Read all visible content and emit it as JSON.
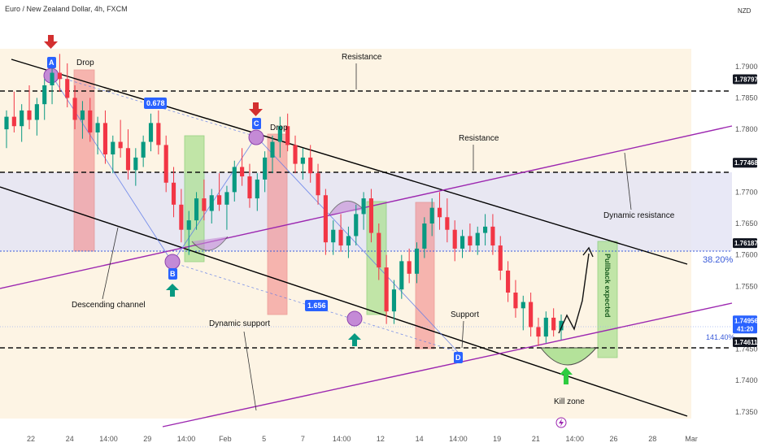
{
  "header": {
    "title": "Euro / New Zealand Dollar, 4h, FXCM",
    "currency": "NZD"
  },
  "chart_data": {
    "type": "candlestick",
    "title": "Euro / New Zealand Dollar, 4h, FXCM",
    "ylim": [
      1.732,
      1.798
    ],
    "y_ticks": [
      {
        "value": 1.79,
        "label": "1.79000"
      },
      {
        "value": 1.785,
        "label": "1.78500"
      },
      {
        "value": 1.78,
        "label": "1.78000"
      },
      {
        "value": 1.77,
        "label": "1.77000"
      },
      {
        "value": 1.765,
        "label": "1.76500"
      },
      {
        "value": 1.76,
        "label": "1.76000"
      },
      {
        "value": 1.755,
        "label": "1.75500"
      },
      {
        "value": 1.745,
        "label": "1.74500"
      },
      {
        "value": 1.74,
        "label": "1.74000"
      },
      {
        "value": 1.735,
        "label": "1.73500"
      }
    ],
    "highlighted_prices": [
      {
        "value": 1.78797,
        "label": "1.78797"
      },
      {
        "value": 1.77468,
        "label": "1.77468"
      },
      {
        "value": 1.76187,
        "label": "1.76187"
      },
      {
        "value": 1.74611,
        "label": "1.74611"
      }
    ],
    "current_price": {
      "value": 1.74956,
      "label": "1.74956",
      "countdown": "41:20",
      "color": "#2962ff"
    },
    "x_ticks": [
      "22",
      "24",
      "14:00",
      "29",
      "14:00",
      "Feb",
      "5",
      "7",
      "14:00",
      "12",
      "14",
      "14:00",
      "19",
      "21",
      "14:00",
      "26",
      "28",
      "Mar"
    ],
    "candles": [
      {
        "o": 1.78,
        "h": 1.783,
        "l": 1.777,
        "c": 1.782
      },
      {
        "o": 1.782,
        "h": 1.786,
        "l": 1.7795,
        "c": 1.7805
      },
      {
        "o": 1.7805,
        "h": 1.784,
        "l": 1.778,
        "c": 1.783
      },
      {
        "o": 1.783,
        "h": 1.787,
        "l": 1.78,
        "c": 1.7815
      },
      {
        "o": 1.7815,
        "h": 1.785,
        "l": 1.779,
        "c": 1.784
      },
      {
        "o": 1.784,
        "h": 1.788,
        "l": 1.7815,
        "c": 1.787
      },
      {
        "o": 1.787,
        "h": 1.7905,
        "l": 1.784,
        "c": 1.789
      },
      {
        "o": 1.789,
        "h": 1.792,
        "l": 1.786,
        "c": 1.788
      },
      {
        "o": 1.788,
        "h": 1.7905,
        "l": 1.7835,
        "c": 1.785
      },
      {
        "o": 1.785,
        "h": 1.787,
        "l": 1.78,
        "c": 1.7815
      },
      {
        "o": 1.7815,
        "h": 1.7845,
        "l": 1.7785,
        "c": 1.783
      },
      {
        "o": 1.783,
        "h": 1.785,
        "l": 1.778,
        "c": 1.7795
      },
      {
        "o": 1.7795,
        "h": 1.782,
        "l": 1.776,
        "c": 1.781
      },
      {
        "o": 1.781,
        "h": 1.783,
        "l": 1.7745,
        "c": 1.776
      },
      {
        "o": 1.776,
        "h": 1.779,
        "l": 1.773,
        "c": 1.778
      },
      {
        "o": 1.778,
        "h": 1.7815,
        "l": 1.7755,
        "c": 1.777
      },
      {
        "o": 1.777,
        "h": 1.78,
        "l": 1.772,
        "c": 1.7735
      },
      {
        "o": 1.7735,
        "h": 1.777,
        "l": 1.771,
        "c": 1.7755
      },
      {
        "o": 1.7755,
        "h": 1.779,
        "l": 1.774,
        "c": 1.778
      },
      {
        "o": 1.778,
        "h": 1.7825,
        "l": 1.7765,
        "c": 1.781
      },
      {
        "o": 1.781,
        "h": 1.783,
        "l": 1.776,
        "c": 1.7775
      },
      {
        "o": 1.7775,
        "h": 1.779,
        "l": 1.77,
        "c": 1.7715
      },
      {
        "o": 1.7715,
        "h": 1.774,
        "l": 1.766,
        "c": 1.768
      },
      {
        "o": 1.768,
        "h": 1.7705,
        "l": 1.762,
        "c": 1.764
      },
      {
        "o": 1.764,
        "h": 1.767,
        "l": 1.76,
        "c": 1.7655
      },
      {
        "o": 1.7655,
        "h": 1.77,
        "l": 1.764,
        "c": 1.769
      },
      {
        "o": 1.769,
        "h": 1.772,
        "l": 1.7655,
        "c": 1.767
      },
      {
        "o": 1.767,
        "h": 1.7705,
        "l": 1.765,
        "c": 1.7695
      },
      {
        "o": 1.7695,
        "h": 1.773,
        "l": 1.767,
        "c": 1.768
      },
      {
        "o": 1.768,
        "h": 1.771,
        "l": 1.764,
        "c": 1.77
      },
      {
        "o": 1.77,
        "h": 1.775,
        "l": 1.7685,
        "c": 1.774
      },
      {
        "o": 1.774,
        "h": 1.777,
        "l": 1.771,
        "c": 1.7725
      },
      {
        "o": 1.7725,
        "h": 1.7745,
        "l": 1.7675,
        "c": 1.769
      },
      {
        "o": 1.769,
        "h": 1.773,
        "l": 1.767,
        "c": 1.772
      },
      {
        "o": 1.772,
        "h": 1.7765,
        "l": 1.77,
        "c": 1.7755
      },
      {
        "o": 1.7755,
        "h": 1.779,
        "l": 1.773,
        "c": 1.778
      },
      {
        "o": 1.778,
        "h": 1.782,
        "l": 1.7755,
        "c": 1.7805
      },
      {
        "o": 1.7805,
        "h": 1.7825,
        "l": 1.7765,
        "c": 1.7775
      },
      {
        "o": 1.7775,
        "h": 1.779,
        "l": 1.773,
        "c": 1.7745
      },
      {
        "o": 1.7745,
        "h": 1.777,
        "l": 1.772,
        "c": 1.7755
      },
      {
        "o": 1.7755,
        "h": 1.7775,
        "l": 1.7715,
        "c": 1.773
      },
      {
        "o": 1.773,
        "h": 1.7745,
        "l": 1.768,
        "c": 1.7695
      },
      {
        "o": 1.7695,
        "h": 1.7705,
        "l": 1.76,
        "c": 1.762
      },
      {
        "o": 1.762,
        "h": 1.7655,
        "l": 1.76,
        "c": 1.764
      },
      {
        "o": 1.764,
        "h": 1.7665,
        "l": 1.7605,
        "c": 1.7615
      },
      {
        "o": 1.7615,
        "h": 1.7645,
        "l": 1.7595,
        "c": 1.763
      },
      {
        "o": 1.763,
        "h": 1.768,
        "l": 1.7615,
        "c": 1.7665
      },
      {
        "o": 1.7665,
        "h": 1.77,
        "l": 1.764,
        "c": 1.769
      },
      {
        "o": 1.769,
        "h": 1.7705,
        "l": 1.762,
        "c": 1.7635
      },
      {
        "o": 1.7635,
        "h": 1.765,
        "l": 1.756,
        "c": 1.758
      },
      {
        "o": 1.758,
        "h": 1.76,
        "l": 1.749,
        "c": 1.751
      },
      {
        "o": 1.751,
        "h": 1.756,
        "l": 1.749,
        "c": 1.7545
      },
      {
        "o": 1.7545,
        "h": 1.76,
        "l": 1.753,
        "c": 1.759
      },
      {
        "o": 1.759,
        "h": 1.761,
        "l": 1.7555,
        "c": 1.757
      },
      {
        "o": 1.757,
        "h": 1.762,
        "l": 1.7555,
        "c": 1.761
      },
      {
        "o": 1.761,
        "h": 1.766,
        "l": 1.7595,
        "c": 1.765
      },
      {
        "o": 1.765,
        "h": 1.769,
        "l": 1.763,
        "c": 1.7675
      },
      {
        "o": 1.7675,
        "h": 1.77,
        "l": 1.764,
        "c": 1.766
      },
      {
        "o": 1.766,
        "h": 1.769,
        "l": 1.762,
        "c": 1.764
      },
      {
        "o": 1.764,
        "h": 1.7655,
        "l": 1.759,
        "c": 1.761
      },
      {
        "o": 1.761,
        "h": 1.764,
        "l": 1.7595,
        "c": 1.763
      },
      {
        "o": 1.763,
        "h": 1.765,
        "l": 1.7605,
        "c": 1.7615
      },
      {
        "o": 1.7615,
        "h": 1.7645,
        "l": 1.76,
        "c": 1.7635
      },
      {
        "o": 1.7635,
        "h": 1.7665,
        "l": 1.7615,
        "c": 1.7645
      },
      {
        "o": 1.7645,
        "h": 1.7665,
        "l": 1.76,
        "c": 1.7615
      },
      {
        "o": 1.7615,
        "h": 1.763,
        "l": 1.756,
        "c": 1.7575
      },
      {
        "o": 1.7575,
        "h": 1.759,
        "l": 1.7525,
        "c": 1.754
      },
      {
        "o": 1.754,
        "h": 1.756,
        "l": 1.75,
        "c": 1.7515
      },
      {
        "o": 1.7515,
        "h": 1.7535,
        "l": 1.748,
        "c": 1.7525
      },
      {
        "o": 1.7525,
        "h": 1.754,
        "l": 1.747,
        "c": 1.7485
      },
      {
        "o": 1.7485,
        "h": 1.75,
        "l": 1.7455,
        "c": 1.747
      },
      {
        "o": 1.747,
        "h": 1.751,
        "l": 1.746,
        "c": 1.75
      },
      {
        "o": 1.75,
        "h": 1.7515,
        "l": 1.747,
        "c": 1.748
      },
      {
        "o": 1.748,
        "h": 1.7505,
        "l": 1.7465,
        "c": 1.7495
      }
    ]
  },
  "annotations": {
    "drop1": "Drop",
    "drop2": "Drop",
    "resistance1": "Resistance",
    "resistance2": "Resistance",
    "dynamic_resistance": "Dynamic resistance",
    "descending_channel": "Descending channel",
    "dynamic_support": "Dynamic support",
    "support": "Support",
    "kill_zone": "Kill zone",
    "pullback": "Pullback expected",
    "fib_top": "38.20%",
    "fib_bottom": "141.40%",
    "ratio1": "0.678",
    "ratio2": "1.656",
    "point_a": "A",
    "point_b": "B",
    "point_c": "C",
    "point_d": "D"
  },
  "colors": {
    "bull": "#089981",
    "bear": "#f23645",
    "channel": "#000000",
    "purple_line": "#9c27b0",
    "badge_blue": "#2962ff"
  }
}
